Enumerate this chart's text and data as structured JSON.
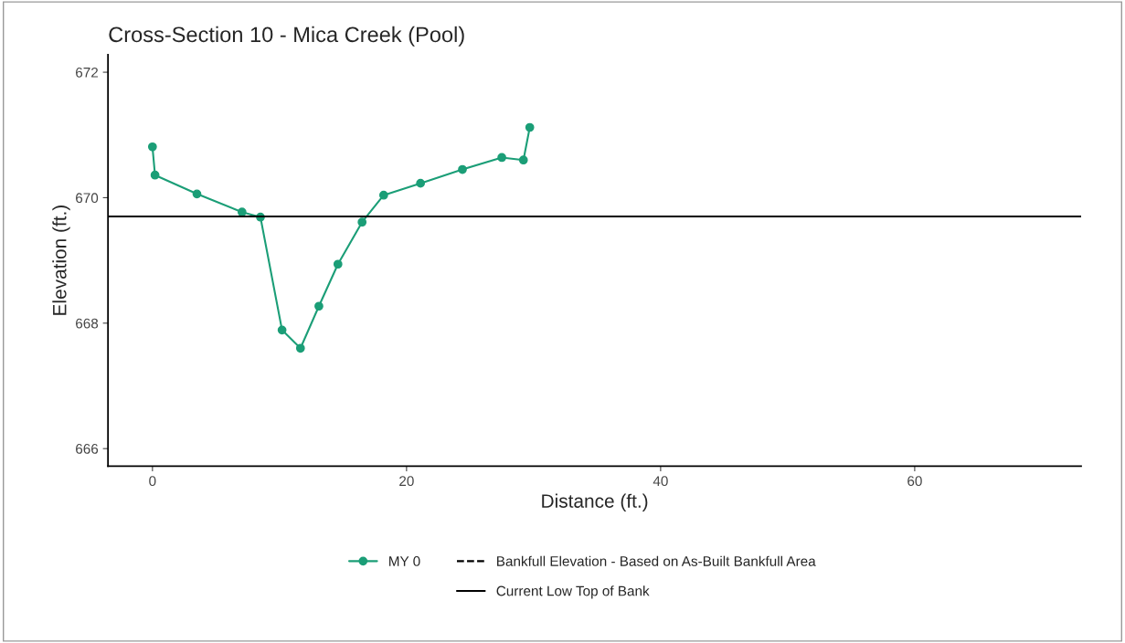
{
  "chart_data": {
    "type": "line",
    "title": "Cross-Section 10 - Mica Creek (Pool)",
    "xlabel": "Distance (ft.)",
    "ylabel": "Elevation (ft.)",
    "series": [
      {
        "name": "MY 0",
        "color": "#1b9e77",
        "x": [
          0,
          0.2,
          3.5,
          7.05,
          8.5,
          10.2,
          11.65,
          13.1,
          14.6,
          16.5,
          18.2,
          21.1,
          24.4,
          27.5,
          29.2,
          29.7
        ],
        "values": [
          670.81,
          670.36,
          670.06,
          669.77,
          669.69,
          667.89,
          667.6,
          668.27,
          668.94,
          669.61,
          670.04,
          670.23,
          670.45,
          670.64,
          670.6,
          671.12
        ]
      }
    ],
    "marker": "circle",
    "line_style": "solid",
    "ref_lines": [
      {
        "axis": "y",
        "value": null,
        "label": "Bankfull Elevation - Based on As-Built Bankfull Area",
        "color": "#000000",
        "line_style": "dashed"
      },
      {
        "axis": "y",
        "value": 669.7,
        "label": "Current Low Top of Bank",
        "color": "#000000",
        "line_style": "solid"
      }
    ],
    "xlim": [
      -3.5,
      73.1
    ],
    "ylim": [
      665.72,
      672.28
    ],
    "xticks": [
      0,
      20,
      40,
      60
    ],
    "yticks": [
      666,
      668,
      670,
      672
    ],
    "grid": false,
    "legend": "bottom"
  }
}
